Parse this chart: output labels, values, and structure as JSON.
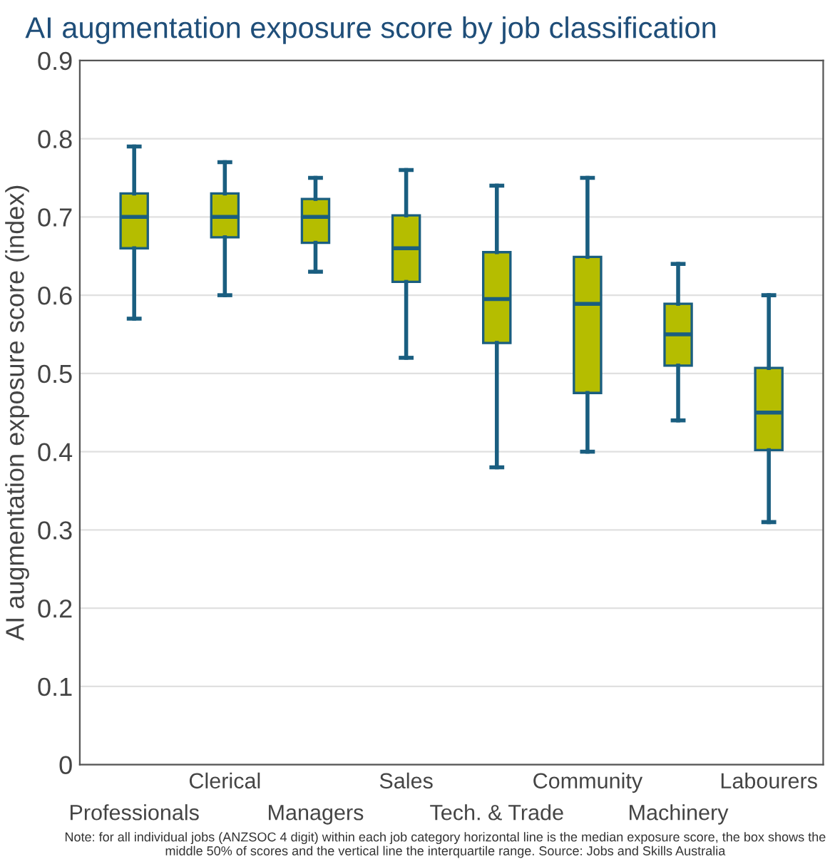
{
  "chart_data": {
    "type": "box",
    "title": "AI augmentation exposure score by job classification",
    "ylabel": "AI augmentation exposure score (index)",
    "categories": [
      "Professionals",
      "Clerical",
      "Managers",
      "Sales",
      "Tech. & Trade",
      "Community",
      "Machinery",
      "Labourers"
    ],
    "series": [
      {
        "color": "#b5bd00",
        "boxes": [
          {
            "low": 0.57,
            "q1": 0.66,
            "median": 0.7,
            "q3": 0.73,
            "high": 0.79
          },
          {
            "low": 0.6,
            "q1": 0.674,
            "median": 0.7,
            "q3": 0.73,
            "high": 0.77
          },
          {
            "low": 0.63,
            "q1": 0.667,
            "median": 0.7,
            "q3": 0.723,
            "high": 0.75
          },
          {
            "low": 0.52,
            "q1": 0.617,
            "median": 0.66,
            "q3": 0.702,
            "high": 0.76
          },
          {
            "low": 0.38,
            "q1": 0.539,
            "median": 0.595,
            "q3": 0.655,
            "high": 0.74
          },
          {
            "low": 0.4,
            "q1": 0.475,
            "median": 0.589,
            "q3": 0.649,
            "high": 0.75
          },
          {
            "low": 0.44,
            "q1": 0.51,
            "median": 0.55,
            "q3": 0.589,
            "high": 0.64
          },
          {
            "low": 0.31,
            "q1": 0.402,
            "median": 0.45,
            "q3": 0.507,
            "high": 0.6
          }
        ]
      }
    ],
    "ylim": [
      0,
      0.9
    ],
    "yticks": [
      0,
      0.1,
      0.2,
      0.3,
      0.4,
      0.5,
      0.6,
      0.7,
      0.8,
      0.9
    ],
    "grid": "y",
    "annotations": [
      "Note: for all individual jobs (ANZSOC 4 digit) within each job category horizontal line is the median exposure score, the box shows the middle 50% of scores and the vertical line the interquartile range. Source: Jobs and Skills Australia"
    ]
  }
}
